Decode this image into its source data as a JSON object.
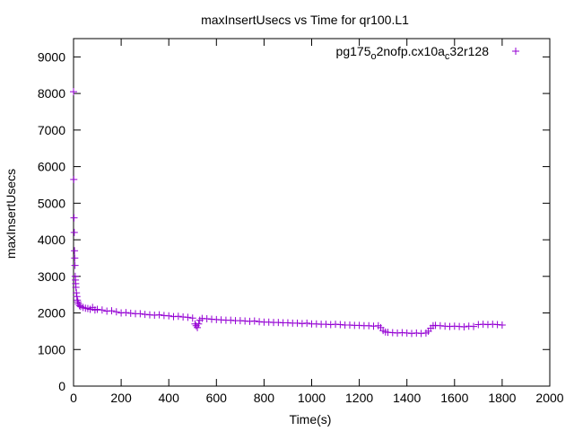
{
  "chart_data": {
    "type": "scatter",
    "title": "maxInsertUsecs vs Time for qr100.L1",
    "xlabel": "Time(s)",
    "ylabel": "maxInsertUsecs",
    "xlim": [
      0,
      2000
    ],
    "ylim": [
      0,
      9500
    ],
    "x_ticks": [
      "0",
      "200",
      "400",
      "600",
      "800",
      "1000",
      "1200",
      "1400",
      "1600",
      "1800",
      "2000"
    ],
    "y_ticks": [
      "0",
      "1000",
      "2000",
      "3000",
      "4000",
      "5000",
      "6000",
      "7000",
      "8000",
      "9000"
    ],
    "grid": false,
    "legend_position": "top-right",
    "marker": "plus",
    "series": [
      {
        "name_parts": [
          {
            "text": "pg175",
            "sub": false
          },
          {
            "text": "o",
            "sub": true
          },
          {
            "text": "2nofp.cx10a",
            "sub": false
          },
          {
            "text": "c",
            "sub": true
          },
          {
            "text": "32r128",
            "sub": false
          }
        ],
        "color": "#9400d3",
        "x": [
          0,
          1,
          2,
          3,
          4,
          5,
          6,
          7,
          8,
          9,
          10,
          12,
          14,
          16,
          18,
          20,
          25,
          30,
          40,
          50,
          60,
          70,
          80,
          90,
          100,
          120,
          140,
          160,
          180,
          200,
          220,
          240,
          260,
          280,
          300,
          320,
          340,
          360,
          380,
          400,
          420,
          440,
          460,
          480,
          500,
          510,
          515,
          520,
          525,
          530,
          540,
          560,
          580,
          600,
          620,
          640,
          660,
          680,
          700,
          720,
          740,
          760,
          780,
          800,
          820,
          840,
          860,
          880,
          900,
          920,
          940,
          960,
          980,
          1000,
          1020,
          1040,
          1060,
          1080,
          1100,
          1120,
          1140,
          1160,
          1180,
          1200,
          1220,
          1240,
          1260,
          1280,
          1290,
          1300,
          1310,
          1320,
          1340,
          1360,
          1380,
          1400,
          1420,
          1440,
          1460,
          1480,
          1490,
          1500,
          1510,
          1520,
          1540,
          1560,
          1580,
          1600,
          1620,
          1640,
          1660,
          1680,
          1700,
          1720,
          1740,
          1760,
          1780,
          1800
        ],
        "y": [
          8050,
          5650,
          4600,
          4200,
          3700,
          3500,
          3300,
          3000,
          2900,
          2800,
          2700,
          2550,
          2450,
          2350,
          2300,
          2250,
          2200,
          2180,
          2150,
          2130,
          2120,
          2100,
          2150,
          2080,
          2100,
          2080,
          2050,
          2060,
          2030,
          2000,
          2010,
          1990,
          1980,
          1980,
          1960,
          1950,
          1940,
          1950,
          1930,
          1920,
          1900,
          1910,
          1890,
          1880,
          1860,
          1700,
          1650,
          1600,
          1700,
          1800,
          1850,
          1840,
          1830,
          1820,
          1810,
          1800,
          1800,
          1790,
          1790,
          1780,
          1770,
          1780,
          1760,
          1750,
          1750,
          1740,
          1740,
          1730,
          1730,
          1720,
          1720,
          1710,
          1720,
          1700,
          1700,
          1690,
          1690,
          1680,
          1690,
          1680,
          1670,
          1670,
          1660,
          1660,
          1650,
          1650,
          1640,
          1650,
          1600,
          1520,
          1480,
          1470,
          1460,
          1450,
          1460,
          1450,
          1440,
          1450,
          1440,
          1450,
          1500,
          1580,
          1650,
          1660,
          1650,
          1640,
          1630,
          1640,
          1630,
          1620,
          1640,
          1630,
          1680,
          1690,
          1680,
          1690,
          1680,
          1670
        ]
      }
    ]
  }
}
